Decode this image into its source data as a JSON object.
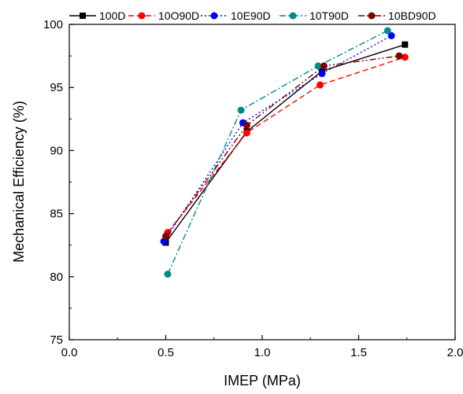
{
  "chart_data": {
    "type": "line",
    "xlabel": "IMEP (MPa)",
    "ylabel": "Mechanical Efficiency (%)",
    "xlim": [
      0.0,
      2.0
    ],
    "ylim": [
      75,
      100
    ],
    "xticks": [
      0.0,
      0.5,
      1.0,
      1.5,
      2.0
    ],
    "xtick_labels": [
      "0.0",
      "0.5",
      "1.0",
      "1.5",
      "2.0"
    ],
    "yticks": [
      75,
      80,
      85,
      90,
      95,
      100
    ],
    "ytick_labels": [
      "75",
      "80",
      "85",
      "90",
      "95",
      "100"
    ],
    "grid": false,
    "legend_position": "top",
    "series": [
      {
        "name": "100D",
        "color": "#000000",
        "marker": "square",
        "dash": "solid",
        "x": [
          0.5,
          0.92,
          1.31,
          1.74
        ],
        "y": [
          82.7,
          91.5,
          96.3,
          98.4
        ]
      },
      {
        "name": "10O90D",
        "color": "#ff0000",
        "marker": "circle",
        "dash": "dash",
        "x": [
          0.51,
          0.92,
          1.3,
          1.74
        ],
        "y": [
          83.5,
          91.4,
          95.2,
          97.4
        ]
      },
      {
        "name": "10E90D",
        "color": "#0000ff",
        "marker": "circle",
        "dash": "dot",
        "x": [
          0.49,
          0.9,
          1.31,
          1.67
        ],
        "y": [
          82.8,
          92.2,
          96.1,
          99.1
        ]
      },
      {
        "name": "10T90D",
        "color": "#008b8b",
        "marker": "circle",
        "dash": "dashdot",
        "x": [
          0.51,
          0.89,
          1.29,
          1.65
        ],
        "y": [
          80.2,
          93.2,
          96.7,
          99.5
        ]
      },
      {
        "name": "10BD90D",
        "color": "#7f0000",
        "marker": "circle",
        "dash": "dashdotdot",
        "x": [
          0.5,
          0.92,
          1.32,
          1.71
        ],
        "y": [
          83.2,
          92.0,
          96.7,
          97.5
        ]
      }
    ]
  }
}
